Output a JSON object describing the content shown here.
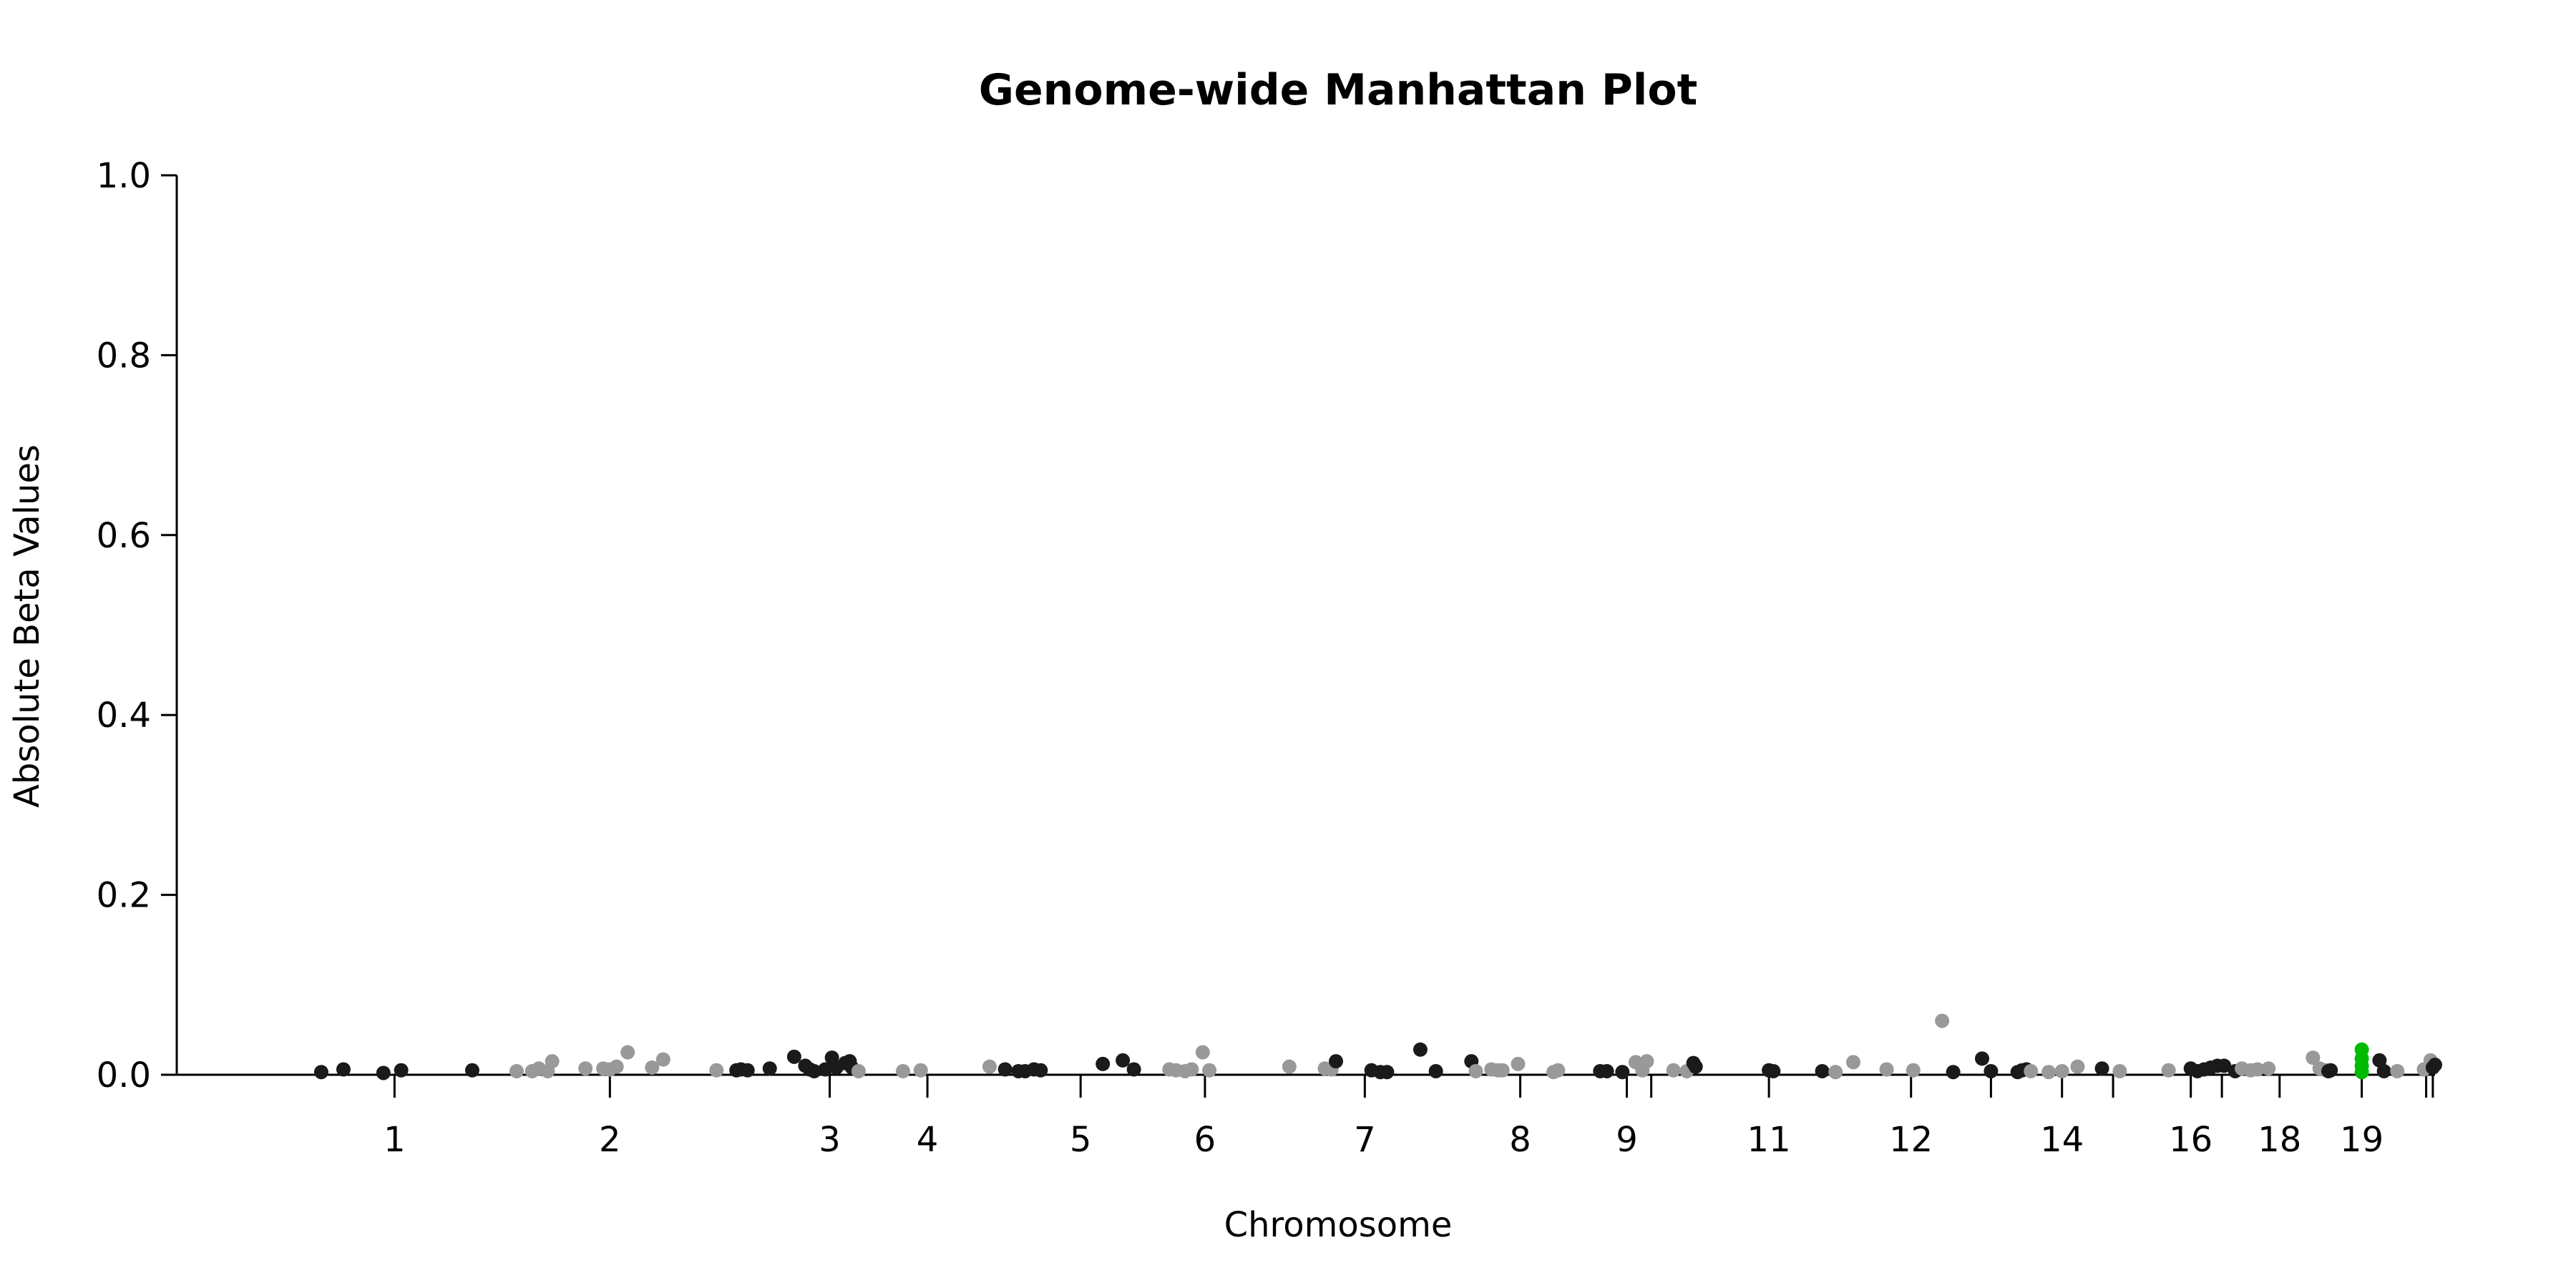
{
  "chart_data": {
    "type": "scatter",
    "title": "Genome-wide Manhattan Plot",
    "xlabel": "Chromosome",
    "ylabel": "Absolute Beta Values",
    "ylim": [
      0,
      1
    ],
    "y_ticks": [
      "0.0",
      "0.2",
      "0.4",
      "0.6",
      "0.8",
      "1.0"
    ],
    "x_range": [
      0,
      1
    ],
    "chromosome_ticks": [
      {
        "pos": 0.081,
        "label": "1"
      },
      {
        "pos": 0.178,
        "label": "2"
      },
      {
        "pos": 0.277,
        "label": "3"
      },
      {
        "pos": 0.321,
        "label": "4"
      },
      {
        "pos": 0.39,
        "label": "5"
      },
      {
        "pos": 0.446,
        "label": "6"
      },
      {
        "pos": 0.518,
        "label": "7"
      },
      {
        "pos": 0.588,
        "label": "8"
      },
      {
        "pos": 0.636,
        "label": "9"
      },
      {
        "pos": 0.647,
        "label": ""
      },
      {
        "pos": 0.7,
        "label": "11"
      },
      {
        "pos": 0.764,
        "label": "12"
      },
      {
        "pos": 0.8,
        "label": ""
      },
      {
        "pos": 0.832,
        "label": "14"
      },
      {
        "pos": 0.855,
        "label": ""
      },
      {
        "pos": 0.89,
        "label": "16"
      },
      {
        "pos": 0.904,
        "label": ""
      },
      {
        "pos": 0.93,
        "label": "18"
      },
      {
        "pos": 0.967,
        "label": "19"
      },
      {
        "pos": 0.996,
        "label": ""
      },
      {
        "pos": 0.999,
        "label": ""
      }
    ],
    "colors": {
      "dark": "#1a1a1a",
      "light": "#999999",
      "highlight": "#00bb00"
    },
    "points": [
      {
        "x": 0.048,
        "y": 0.003,
        "c": "dark"
      },
      {
        "x": 0.058,
        "y": 0.006,
        "c": "dark"
      },
      {
        "x": 0.076,
        "y": 0.002,
        "c": "dark"
      },
      {
        "x": 0.084,
        "y": 0.005,
        "c": "dark"
      },
      {
        "x": 0.116,
        "y": 0.005,
        "c": "dark"
      },
      {
        "x": 0.136,
        "y": 0.004,
        "c": "light"
      },
      {
        "x": 0.143,
        "y": 0.004,
        "c": "light"
      },
      {
        "x": 0.146,
        "y": 0.007,
        "c": "light"
      },
      {
        "x": 0.15,
        "y": 0.004,
        "c": "light"
      },
      {
        "x": 0.152,
        "y": 0.015,
        "c": "light"
      },
      {
        "x": 0.167,
        "y": 0.007,
        "c": "light"
      },
      {
        "x": 0.175,
        "y": 0.007,
        "c": "light"
      },
      {
        "x": 0.178,
        "y": 0.006,
        "c": "light"
      },
      {
        "x": 0.181,
        "y": 0.009,
        "c": "light"
      },
      {
        "x": 0.186,
        "y": 0.025,
        "c": "light"
      },
      {
        "x": 0.197,
        "y": 0.008,
        "c": "light"
      },
      {
        "x": 0.202,
        "y": 0.017,
        "c": "light"
      },
      {
        "x": 0.226,
        "y": 0.005,
        "c": "light"
      },
      {
        "x": 0.235,
        "y": 0.005,
        "c": "dark"
      },
      {
        "x": 0.237,
        "y": 0.006,
        "c": "dark"
      },
      {
        "x": 0.24,
        "y": 0.005,
        "c": "dark"
      },
      {
        "x": 0.25,
        "y": 0.007,
        "c": "dark"
      },
      {
        "x": 0.261,
        "y": 0.02,
        "c": "dark"
      },
      {
        "x": 0.266,
        "y": 0.01,
        "c": "dark"
      },
      {
        "x": 0.268,
        "y": 0.006,
        "c": "dark"
      },
      {
        "x": 0.27,
        "y": 0.004,
        "c": "dark"
      },
      {
        "x": 0.275,
        "y": 0.006,
        "c": "dark"
      },
      {
        "x": 0.278,
        "y": 0.019,
        "c": "dark"
      },
      {
        "x": 0.28,
        "y": 0.008,
        "c": "dark"
      },
      {
        "x": 0.284,
        "y": 0.013,
        "c": "dark"
      },
      {
        "x": 0.286,
        "y": 0.015,
        "c": "dark"
      },
      {
        "x": 0.287,
        "y": 0.008,
        "c": "dark"
      },
      {
        "x": 0.29,
        "y": 0.004,
        "c": "light"
      },
      {
        "x": 0.31,
        "y": 0.004,
        "c": "light"
      },
      {
        "x": 0.318,
        "y": 0.005,
        "c": "light"
      },
      {
        "x": 0.349,
        "y": 0.009,
        "c": "light"
      },
      {
        "x": 0.356,
        "y": 0.006,
        "c": "dark"
      },
      {
        "x": 0.362,
        "y": 0.004,
        "c": "dark"
      },
      {
        "x": 0.365,
        "y": 0.004,
        "c": "dark"
      },
      {
        "x": 0.369,
        "y": 0.006,
        "c": "dark"
      },
      {
        "x": 0.372,
        "y": 0.005,
        "c": "dark"
      },
      {
        "x": 0.4,
        "y": 0.012,
        "c": "dark"
      },
      {
        "x": 0.409,
        "y": 0.016,
        "c": "dark"
      },
      {
        "x": 0.414,
        "y": 0.006,
        "c": "dark"
      },
      {
        "x": 0.43,
        "y": 0.006,
        "c": "light"
      },
      {
        "x": 0.433,
        "y": 0.005,
        "c": "light"
      },
      {
        "x": 0.437,
        "y": 0.004,
        "c": "light"
      },
      {
        "x": 0.44,
        "y": 0.006,
        "c": "light"
      },
      {
        "x": 0.445,
        "y": 0.025,
        "c": "light"
      },
      {
        "x": 0.448,
        "y": 0.005,
        "c": "light"
      },
      {
        "x": 0.484,
        "y": 0.009,
        "c": "light"
      },
      {
        "x": 0.5,
        "y": 0.007,
        "c": "light"
      },
      {
        "x": 0.503,
        "y": 0.006,
        "c": "light"
      },
      {
        "x": 0.505,
        "y": 0.015,
        "c": "dark"
      },
      {
        "x": 0.521,
        "y": 0.005,
        "c": "dark"
      },
      {
        "x": 0.525,
        "y": 0.003,
        "c": "dark"
      },
      {
        "x": 0.528,
        "y": 0.003,
        "c": "dark"
      },
      {
        "x": 0.543,
        "y": 0.028,
        "c": "dark"
      },
      {
        "x": 0.55,
        "y": 0.004,
        "c": "dark"
      },
      {
        "x": 0.566,
        "y": 0.015,
        "c": "dark"
      },
      {
        "x": 0.568,
        "y": 0.004,
        "c": "light"
      },
      {
        "x": 0.575,
        "y": 0.006,
        "c": "light"
      },
      {
        "x": 0.578,
        "y": 0.005,
        "c": "light"
      },
      {
        "x": 0.58,
        "y": 0.005,
        "c": "light"
      },
      {
        "x": 0.587,
        "y": 0.012,
        "c": "light"
      },
      {
        "x": 0.603,
        "y": 0.003,
        "c": "light"
      },
      {
        "x": 0.605,
        "y": 0.005,
        "c": "light"
      },
      {
        "x": 0.624,
        "y": 0.004,
        "c": "dark"
      },
      {
        "x": 0.627,
        "y": 0.004,
        "c": "dark"
      },
      {
        "x": 0.634,
        "y": 0.003,
        "c": "dark"
      },
      {
        "x": 0.64,
        "y": 0.014,
        "c": "light"
      },
      {
        "x": 0.643,
        "y": 0.005,
        "c": "light"
      },
      {
        "x": 0.645,
        "y": 0.015,
        "c": "light"
      },
      {
        "x": 0.657,
        "y": 0.005,
        "c": "light"
      },
      {
        "x": 0.663,
        "y": 0.004,
        "c": "light"
      },
      {
        "x": 0.666,
        "y": 0.013,
        "c": "dark"
      },
      {
        "x": 0.667,
        "y": 0.009,
        "c": "dark"
      },
      {
        "x": 0.7,
        "y": 0.005,
        "c": "dark"
      },
      {
        "x": 0.702,
        "y": 0.004,
        "c": "dark"
      },
      {
        "x": 0.724,
        "y": 0.004,
        "c": "dark"
      },
      {
        "x": 0.73,
        "y": 0.003,
        "c": "light"
      },
      {
        "x": 0.738,
        "y": 0.014,
        "c": "light"
      },
      {
        "x": 0.753,
        "y": 0.006,
        "c": "light"
      },
      {
        "x": 0.765,
        "y": 0.005,
        "c": "light"
      },
      {
        "x": 0.778,
        "y": 0.06,
        "c": "light"
      },
      {
        "x": 0.783,
        "y": 0.003,
        "c": "dark"
      },
      {
        "x": 0.796,
        "y": 0.018,
        "c": "dark"
      },
      {
        "x": 0.8,
        "y": 0.004,
        "c": "dark"
      },
      {
        "x": 0.812,
        "y": 0.003,
        "c": "dark"
      },
      {
        "x": 0.814,
        "y": 0.005,
        "c": "dark"
      },
      {
        "x": 0.816,
        "y": 0.006,
        "c": "dark"
      },
      {
        "x": 0.818,
        "y": 0.004,
        "c": "light"
      },
      {
        "x": 0.826,
        "y": 0.003,
        "c": "light"
      },
      {
        "x": 0.832,
        "y": 0.004,
        "c": "light"
      },
      {
        "x": 0.839,
        "y": 0.009,
        "c": "light"
      },
      {
        "x": 0.85,
        "y": 0.007,
        "c": "dark"
      },
      {
        "x": 0.858,
        "y": 0.004,
        "c": "light"
      },
      {
        "x": 0.88,
        "y": 0.005,
        "c": "light"
      },
      {
        "x": 0.89,
        "y": 0.007,
        "c": "dark"
      },
      {
        "x": 0.893,
        "y": 0.004,
        "c": "dark"
      },
      {
        "x": 0.896,
        "y": 0.006,
        "c": "dark"
      },
      {
        "x": 0.899,
        "y": 0.008,
        "c": "dark"
      },
      {
        "x": 0.902,
        "y": 0.01,
        "c": "dark"
      },
      {
        "x": 0.905,
        "y": 0.01,
        "c": "dark"
      },
      {
        "x": 0.91,
        "y": 0.004,
        "c": "dark"
      },
      {
        "x": 0.913,
        "y": 0.007,
        "c": "light"
      },
      {
        "x": 0.917,
        "y": 0.005,
        "c": "light"
      },
      {
        "x": 0.92,
        "y": 0.006,
        "c": "light"
      },
      {
        "x": 0.925,
        "y": 0.007,
        "c": "light"
      },
      {
        "x": 0.945,
        "y": 0.019,
        "c": "light"
      },
      {
        "x": 0.948,
        "y": 0.007,
        "c": "light"
      },
      {
        "x": 0.951,
        "y": 0.005,
        "c": "light"
      },
      {
        "x": 0.952,
        "y": 0.004,
        "c": "dark"
      },
      {
        "x": 0.953,
        "y": 0.005,
        "c": "dark"
      },
      {
        "x": 0.967,
        "y": 0.028,
        "c": "highlight"
      },
      {
        "x": 0.967,
        "y": 0.018,
        "c": "highlight"
      },
      {
        "x": 0.967,
        "y": 0.01,
        "c": "highlight"
      },
      {
        "x": 0.967,
        "y": 0.003,
        "c": "highlight"
      },
      {
        "x": 0.975,
        "y": 0.016,
        "c": "dark"
      },
      {
        "x": 0.977,
        "y": 0.004,
        "c": "dark"
      },
      {
        "x": 0.983,
        "y": 0.004,
        "c": "light"
      },
      {
        "x": 0.995,
        "y": 0.006,
        "c": "light"
      },
      {
        "x": 0.998,
        "y": 0.016,
        "c": "light"
      },
      {
        "x": 0.999,
        "y": 0.008,
        "c": "dark"
      },
      {
        "x": 1.0,
        "y": 0.011,
        "c": "dark"
      }
    ]
  }
}
